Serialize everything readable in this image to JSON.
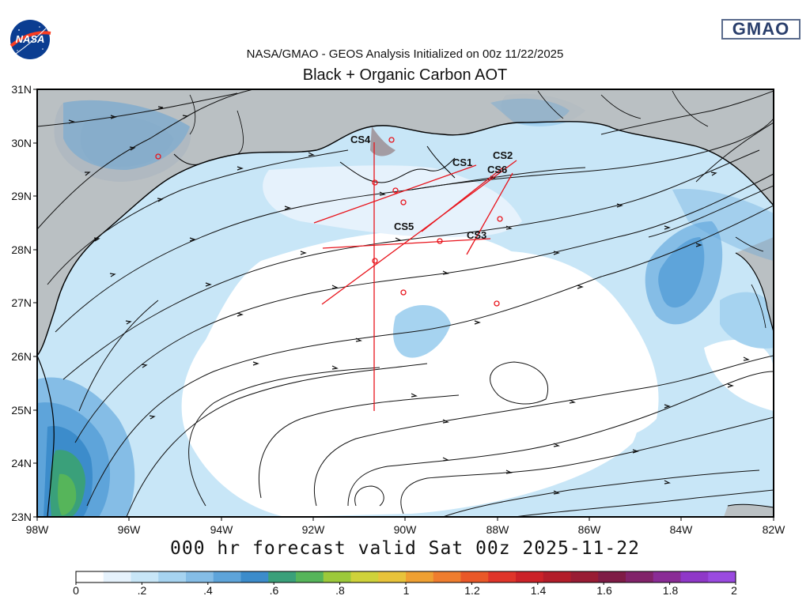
{
  "header": {
    "line1": "NASA/GMAO - GEOS Analysis Initialized on 00z 11/22/2025",
    "line2": "Black + Organic Carbon AOT"
  },
  "logos": {
    "left": "NASA",
    "right": "GMAO"
  },
  "footer": "000 hr forecast valid Sat 00z 2025-11-22",
  "map": {
    "lon_range": [
      -98,
      -82
    ],
    "lat_range": [
      23,
      31
    ],
    "lat_ticks": [
      "31N",
      "30N",
      "29N",
      "28N",
      "27N",
      "26N",
      "25N",
      "24N",
      "23N"
    ],
    "lon_ticks": [
      "98W",
      "96W",
      "94W",
      "92W",
      "90W",
      "88W",
      "86W",
      "84W",
      "82W"
    ],
    "cross_sections": [
      {
        "name": "CS1",
        "label_lon": -88.7,
        "label_lat": 29.65
      },
      {
        "name": "CS2",
        "label_lon": -88.0,
        "label_lat": 29.8
      },
      {
        "name": "CS3",
        "label_lon": -88.5,
        "label_lat": 28.25
      },
      {
        "name": "CS4",
        "label_lon": -91.0,
        "label_lat": 30.05
      },
      {
        "name": "CS5",
        "label_lon": -89.95,
        "label_lat": 28.4
      },
      {
        "name": "CS6",
        "label_lon": -88.0,
        "label_lat": 29.5
      }
    ],
    "line_color": "#e8141c"
  },
  "colorbar": {
    "labels": [
      "0",
      ".2",
      ".4",
      ".6",
      ".8",
      "1",
      "1.2",
      "1.4",
      "1.6",
      "1.8",
      "2"
    ],
    "colors": [
      "#ffffff",
      "#e6f2fc",
      "#c8e6f7",
      "#a6d3f0",
      "#85bde6",
      "#5ea4da",
      "#3c8ccb",
      "#3aa07a",
      "#56b55a",
      "#9cc93a",
      "#cfd23a",
      "#e8c33a",
      "#efa032",
      "#ef7d2e",
      "#ea5828",
      "#e0352a",
      "#cc2228",
      "#b31d2a",
      "#991c34",
      "#7f1c46",
      "#82236a",
      "#8a2c96",
      "#8f38c8",
      "#9a4ae0"
    ]
  }
}
